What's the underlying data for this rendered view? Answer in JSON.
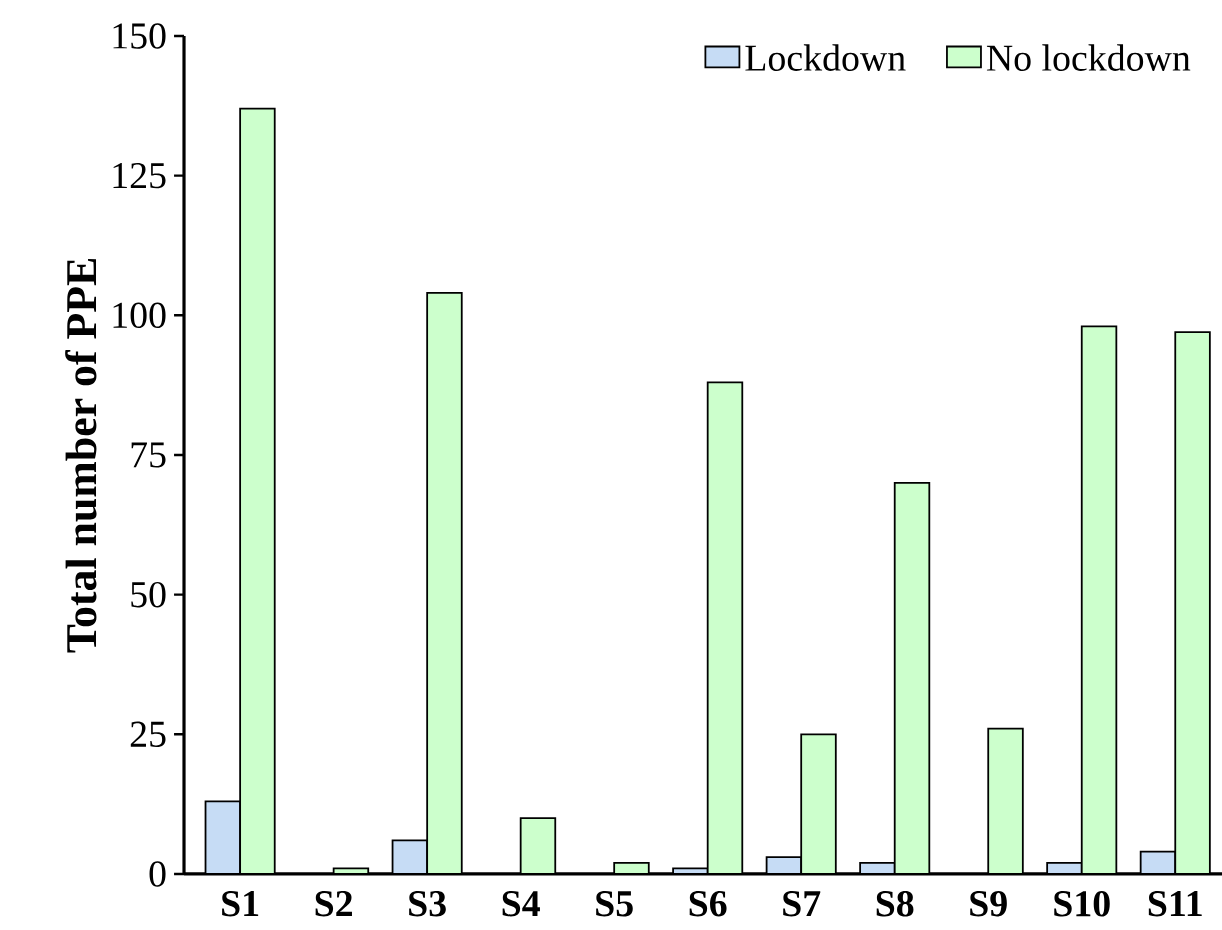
{
  "chart_data": {
    "type": "bar",
    "ylabel": "Total number of PPE",
    "categories": [
      "S1",
      "S2",
      "S3",
      "S4",
      "S5",
      "S6",
      "S7",
      "S8",
      "S9",
      "S10",
      "S11"
    ],
    "series": [
      {
        "name": "Lockdown",
        "color": "#c6dcf5",
        "values": [
          13,
          null,
          6,
          null,
          null,
          1,
          3,
          2,
          null,
          2,
          4
        ]
      },
      {
        "name": "No lockdown",
        "color": "#ccffcc",
        "values": [
          137,
          1,
          104,
          10,
          2,
          88,
          25,
          70,
          26,
          98,
          97
        ]
      }
    ],
    "ylim": [
      0,
      150
    ],
    "yticks": [
      0,
      25,
      50,
      75,
      100,
      125,
      150
    ],
    "grid": false,
    "legend": "top right"
  }
}
